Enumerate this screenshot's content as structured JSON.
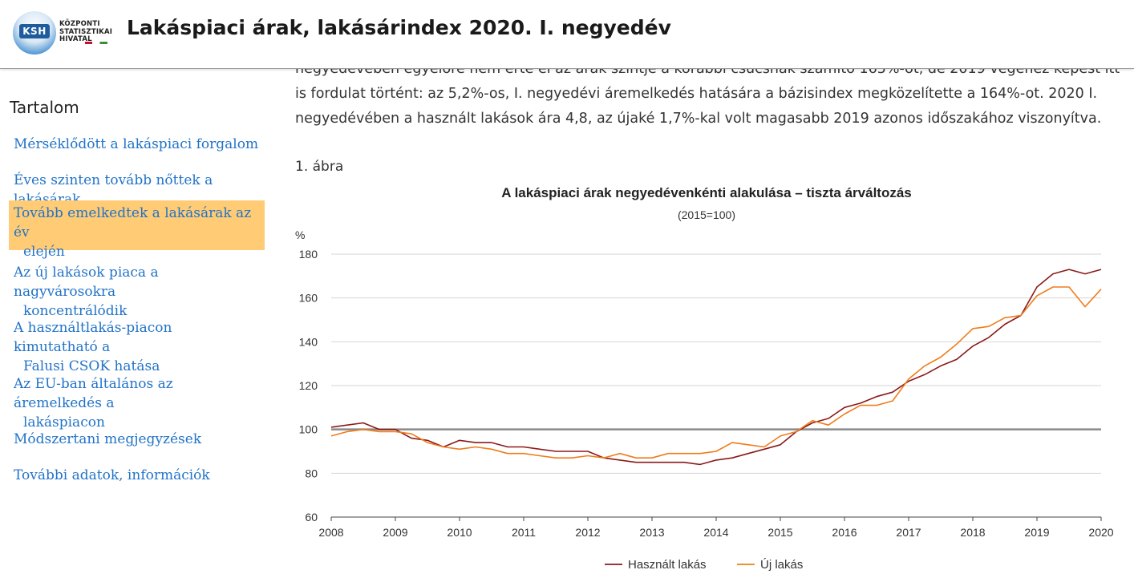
{
  "header": {
    "logo_abbr": "KSH",
    "logo_lines": [
      "KÖZPONTI",
      "STATISZTIKAI",
      "HIVATAL"
    ],
    "title": "Lakáspiaci árak, lakásárindex 2020. I. negyedév"
  },
  "sidebar": {
    "heading": "Tartalom",
    "items": [
      {
        "line1": "Mérséklődött a lakáspiaci forgalom",
        "line2": ""
      },
      {
        "line1": "Éves szinten tovább nőttek a lakásárak",
        "line2": ""
      },
      {
        "line1": "Tovább emelkedtek a lakásárak az év",
        "line2": "elején",
        "active": true
      },
      {
        "line1": "Az új lakások piaca a nagyvárosokra",
        "line2": "koncentrálódik"
      },
      {
        "line1": "A használtlakás-piacon kimutatható a",
        "line2": "Falusi CSOK hatása"
      },
      {
        "line1": "Az EU-ban általános az áremelkedés a",
        "line2": "lakáspiacon"
      },
      {
        "line1": "Módszertani megjegyzések",
        "line2": ""
      },
      {
        "line1": "További adatok, információk",
        "line2": ""
      }
    ]
  },
  "main": {
    "paragraph_lines": [
      "negyedévében egyelőre nem érte el az árak szintje a korábbi csúcsnak számító 165%-ot, de 2019 végéhez képest itt",
      "is fordulat történt: az 5,2%-os, I. negyedévi áremelkedés hatására a bázisindex megközelítette a 164%-ot. 2020 I.",
      "negyedévében a használt lakások ára 4,8, az újaké 1,7%-kal volt magasabb 2019 azonos időszakához viszonyítva."
    ],
    "figure_label": "1. ábra"
  },
  "chart_data": {
    "type": "line",
    "title": "A lakáspiaci árak negyedévenkénti alakulása – tiszta árváltozás",
    "subtitle": "(2015=100)",
    "ylabel": "%",
    "xlabel": "",
    "ylim": [
      60,
      180
    ],
    "yticks": [
      60,
      80,
      100,
      120,
      140,
      160,
      180
    ],
    "xlim": [
      2008,
      2020
    ],
    "xticks": [
      2008,
      2009,
      2010,
      2011,
      2012,
      2013,
      2014,
      2015,
      2016,
      2017,
      2018,
      2019,
      2020
    ],
    "reference_line": 100,
    "grid": true,
    "legend_position": "bottom",
    "x": [
      2008.0,
      2008.25,
      2008.5,
      2008.75,
      2009.0,
      2009.25,
      2009.5,
      2009.75,
      2010.0,
      2010.25,
      2010.5,
      2010.75,
      2011.0,
      2011.25,
      2011.5,
      2011.75,
      2012.0,
      2012.25,
      2012.5,
      2012.75,
      2013.0,
      2013.25,
      2013.5,
      2013.75,
      2014.0,
      2014.25,
      2014.5,
      2014.75,
      2015.0,
      2015.25,
      2015.5,
      2015.75,
      2016.0,
      2016.25,
      2016.5,
      2016.75,
      2017.0,
      2017.25,
      2017.5,
      2017.75,
      2018.0,
      2018.25,
      2018.5,
      2018.75,
      2019.0,
      2019.25,
      2019.5,
      2019.75,
      2020.0
    ],
    "series": [
      {
        "name": "Használt lakás",
        "color": "#8b1a1a",
        "values": [
          101,
          102,
          103,
          100,
          100,
          96,
          95,
          92,
          95,
          94,
          94,
          92,
          92,
          91,
          90,
          90,
          90,
          87,
          86,
          85,
          85,
          85,
          85,
          84,
          86,
          87,
          89,
          91,
          93,
          99,
          103,
          105,
          110,
          112,
          115,
          117,
          122,
          125,
          129,
          132,
          138,
          142,
          148,
          152,
          165,
          171,
          173,
          171,
          173
        ]
      },
      {
        "name": "Új lakás",
        "color": "#f07c1a",
        "values": [
          97,
          99,
          100,
          99,
          99,
          98,
          94,
          92,
          91,
          92,
          91,
          89,
          89,
          88,
          87,
          87,
          88,
          87,
          89,
          87,
          87,
          89,
          89,
          89,
          90,
          94,
          93,
          92,
          97,
          99,
          104,
          102,
          107,
          111,
          111,
          113,
          123,
          129,
          133,
          139,
          146,
          147,
          151,
          152,
          161,
          165,
          165,
          156,
          164
        ]
      }
    ]
  }
}
